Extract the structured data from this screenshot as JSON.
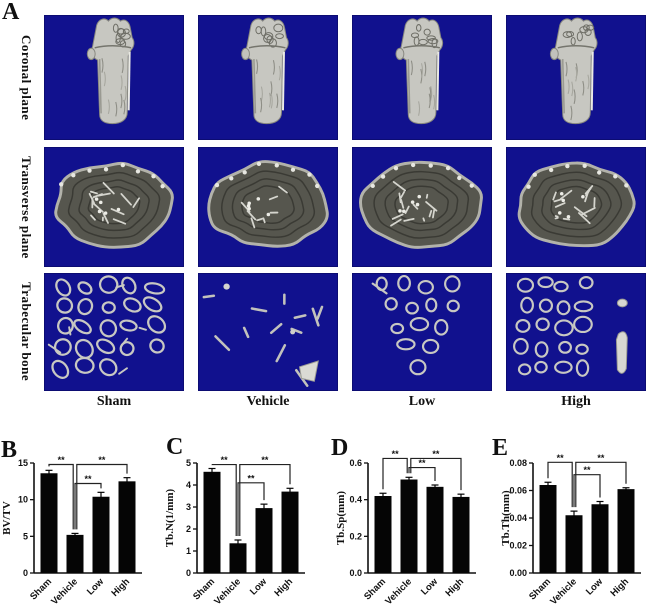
{
  "panel_a": {
    "label": "A",
    "rows": [
      {
        "label": "Coronal plane"
      },
      {
        "label": "Transverse plane"
      },
      {
        "label": "Trabecular bone"
      }
    ],
    "columns": [
      {
        "label": "Sham"
      },
      {
        "label": "Vehicle"
      },
      {
        "label": "Low"
      },
      {
        "label": "High"
      }
    ],
    "colors": {
      "image_background": "#11118e",
      "bone_light": "#c7c7c1",
      "bone_dark": "#56564e"
    }
  },
  "chart_data": [
    {
      "panel": "B",
      "type": "bar",
      "categories": [
        "Sham",
        "Vehicle",
        "Low",
        "High"
      ],
      "values": [
        13.6,
        5.2,
        10.4,
        12.5
      ],
      "errors": [
        0.4,
        0.2,
        0.6,
        0.5
      ],
      "title": "",
      "xlabel": "",
      "ylabel": "BV/TV",
      "ylim": [
        0,
        15
      ],
      "yticks": [
        0,
        5,
        10,
        15
      ],
      "ytick_labels": [
        "0",
        "5",
        "10",
        "15"
      ],
      "bar_color": "#050505",
      "significance": [
        {
          "from": 0,
          "to": 1,
          "label": "**",
          "height": 14.8
        },
        {
          "from": 1,
          "to": 2,
          "label": "**",
          "height": 12.2
        },
        {
          "from": 1,
          "to": 3,
          "label": "**",
          "height": 14.8
        }
      ]
    },
    {
      "panel": "C",
      "type": "bar",
      "categories": [
        "Sham",
        "Vehicle",
        "Low",
        "High"
      ],
      "values": [
        4.6,
        1.35,
        2.95,
        3.7
      ],
      "errors": [
        0.15,
        0.15,
        0.18,
        0.15
      ],
      "title": "",
      "xlabel": "",
      "ylabel": "Tb.N(1/mm)",
      "ylim": [
        0,
        5
      ],
      "yticks": [
        0,
        1,
        2,
        3,
        4,
        5
      ],
      "ytick_labels": [
        "0",
        "1",
        "2",
        "3",
        "4",
        "5"
      ],
      "bar_color": "#050505",
      "significance": [
        {
          "from": 0,
          "to": 1,
          "label": "**",
          "height": 4.93
        },
        {
          "from": 1,
          "to": 2,
          "label": "**",
          "height": 4.1
        },
        {
          "from": 1,
          "to": 3,
          "label": "**",
          "height": 4.93
        }
      ]
    },
    {
      "panel": "D",
      "type": "bar",
      "categories": [
        "Sham",
        "Vehicle",
        "Low",
        "High"
      ],
      "values": [
        0.42,
        0.51,
        0.47,
        0.415
      ],
      "errors": [
        0.015,
        0.012,
        0.01,
        0.015
      ],
      "title": "",
      "xlabel": "",
      "ylabel": "Tb.Sp(mm)",
      "ylim": [
        0,
        0.6
      ],
      "yticks": [
        0,
        0.2,
        0.4,
        0.6
      ],
      "ytick_labels": [
        "0.0",
        "0.2",
        "0.4",
        "0.6"
      ],
      "bar_color": "#050505",
      "significance": [
        {
          "from": 0,
          "to": 1,
          "label": "**",
          "height": 0.625
        },
        {
          "from": 1,
          "to": 2,
          "label": "**",
          "height": 0.575
        },
        {
          "from": 1,
          "to": 3,
          "label": "**",
          "height": 0.625
        }
      ]
    },
    {
      "panel": "E",
      "type": "bar",
      "categories": [
        "Sham",
        "Vehicle",
        "Low",
        "High"
      ],
      "values": [
        0.064,
        0.042,
        0.05,
        0.061
      ],
      "errors": [
        0.002,
        0.003,
        0.002,
        0.001
      ],
      "title": "",
      "xlabel": "",
      "ylabel": "Tb.Th(mm)",
      "ylim": [
        0,
        0.08
      ],
      "yticks": [
        0,
        0.02,
        0.04,
        0.06,
        0.08
      ],
      "ytick_labels": [
        "0.00",
        "0.02",
        "0.04",
        "0.06",
        "0.08"
      ],
      "bar_color": "#050505",
      "significance": [
        {
          "from": 0,
          "to": 1,
          "label": "**",
          "height": 0.0805
        },
        {
          "from": 1,
          "to": 2,
          "label": "**",
          "height": 0.0715
        },
        {
          "from": 1,
          "to": 3,
          "label": "**",
          "height": 0.0805
        }
      ]
    }
  ]
}
